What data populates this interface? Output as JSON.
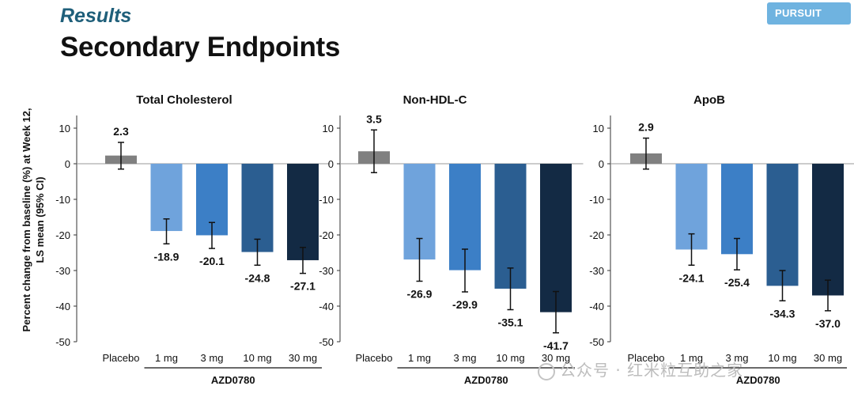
{
  "header": {
    "section": "Results",
    "title": "Secondary Endpoints",
    "badge": "PURSUIT"
  },
  "watermark": {
    "text": "公众号 · 红米粒互助之家",
    "icon": "wechat-icon"
  },
  "colors": {
    "placebo": "#808080",
    "dose_1mg": "#6fa3dc",
    "dose_3mg": "#3c7fc6",
    "dose_10mg": "#2b5e91",
    "dose_30mg": "#132a44"
  },
  "chart_data": [
    {
      "type": "bar",
      "title": "Total Cholesterol",
      "ylabel": "Percent change from baseline (%) at Week 12, LS mean (95% CI)",
      "ylim": [
        -50,
        15
      ],
      "yticks": [
        10,
        0,
        -10,
        -20,
        -30,
        -40,
        -50
      ],
      "categories": [
        "Placebo",
        "1 mg",
        "3 mg",
        "10 mg",
        "30 mg"
      ],
      "group_label": "AZD0780",
      "values": [
        2.3,
        -18.9,
        -20.1,
        -24.8,
        -27.1
      ],
      "value_labels": [
        "2.3",
        "-18.9",
        "-20.1",
        "-24.8",
        "-27.1"
      ],
      "ci_low": [
        -1.5,
        -22.5,
        -23.8,
        -28.5,
        -30.8
      ],
      "ci_high": [
        6.0,
        -15.5,
        -16.5,
        -21.2,
        -23.5
      ]
    },
    {
      "type": "bar",
      "title": "Non-HDL-C",
      "ylim": [
        -50,
        15
      ],
      "yticks": [
        10,
        0,
        -10,
        -20,
        -30,
        -40,
        -50
      ],
      "categories": [
        "Placebo",
        "1 mg",
        "3 mg",
        "10 mg",
        "30 mg"
      ],
      "group_label": "AZD0780",
      "values": [
        3.5,
        -26.9,
        -29.9,
        -35.1,
        -41.7
      ],
      "value_labels": [
        "3.5",
        "-26.9",
        "-29.9",
        "-35.1",
        "-41.7"
      ],
      "ci_low": [
        -2.5,
        -33.0,
        -36.0,
        -41.0,
        -47.5
      ],
      "ci_high": [
        9.5,
        -21.0,
        -24.0,
        -29.3,
        -35.9
      ]
    },
    {
      "type": "bar",
      "title": "ApoB",
      "ylim": [
        -50,
        15
      ],
      "yticks": [
        10,
        0,
        -10,
        -20,
        -30,
        -40,
        -50
      ],
      "categories": [
        "Placebo",
        "1 mg",
        "3 mg",
        "10 mg",
        "30 mg"
      ],
      "group_label": "AZD0780",
      "values": [
        2.9,
        -24.1,
        -25.4,
        -34.3,
        -37.0
      ],
      "value_labels": [
        "2.9",
        "-24.1",
        "-25.4",
        "-34.3",
        "-37.0"
      ],
      "ci_low": [
        -1.5,
        -28.5,
        -29.8,
        -38.5,
        -41.3
      ],
      "ci_high": [
        7.2,
        -19.7,
        -21.0,
        -30.0,
        -32.7
      ]
    }
  ]
}
